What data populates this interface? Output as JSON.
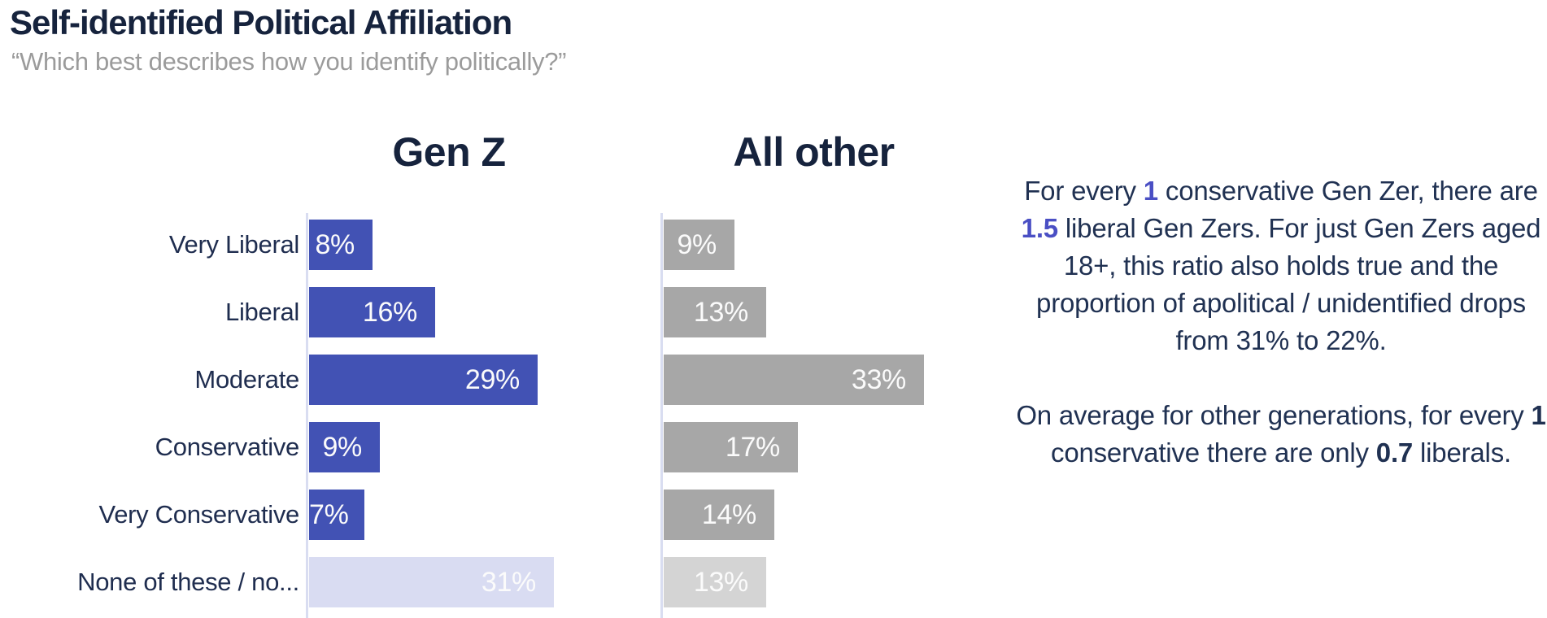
{
  "page": {
    "title": "Self-identified Political Affiliation",
    "subtitle": "“Which best describes how you identify politically?”"
  },
  "colors": {
    "genz_bar": "#4252b4",
    "genz_bar_muted": "#d9dcf2",
    "other_bar": "#a7a7a7",
    "other_bar_muted": "#d4d4d4",
    "bar_value_label": "#fbfbfb",
    "accent_text": "#4a4fc4",
    "heading_text": "#16233d",
    "category_label_text": "#1f2d4f",
    "body_text": "#203152",
    "subtitle_text": "#9b9b9b",
    "axis_line": "#d9ddf1"
  },
  "chart_data": {
    "type": "bar",
    "orientation": "horizontal",
    "title": "Self-identified Political Affiliation",
    "subtitle": "“Which best describes how you identify politically?”",
    "categories": [
      "Very Liberal",
      "Liberal",
      "Moderate",
      "Conservative",
      "Very Conservative",
      "None of these / no..."
    ],
    "series": [
      {
        "name": "Gen Z",
        "values": [
          8,
          16,
          29,
          9,
          7,
          31
        ]
      },
      {
        "name": "All other",
        "values": [
          9,
          13,
          33,
          17,
          14,
          13
        ]
      }
    ],
    "value_suffix": "%",
    "value_label_position": "inside-end",
    "muted_last_category": true,
    "xlim": [
      0,
      33
    ],
    "grid": false,
    "legend_position": "column-headers-above-charts"
  },
  "annotation": {
    "paragraphs": [
      [
        {
          "text": "For every "
        },
        {
          "text": "1",
          "bold": true,
          "accent": true
        },
        {
          "text": " conservative Gen Zer, there are "
        },
        {
          "text": "1.5",
          "bold": true,
          "accent": true
        },
        {
          "text": " liberal Gen Zers.  For just Gen Zers aged 18+, this ratio also holds true and the proportion of apolitical / unidentified drops from 31% to 22%."
        }
      ],
      [
        {
          "text": "On average for other generations, for every "
        },
        {
          "text": "1",
          "bold": true
        },
        {
          "text": " conservative there are only "
        },
        {
          "text": "0.7",
          "bold": true
        },
        {
          "text": " liberals."
        }
      ]
    ]
  }
}
